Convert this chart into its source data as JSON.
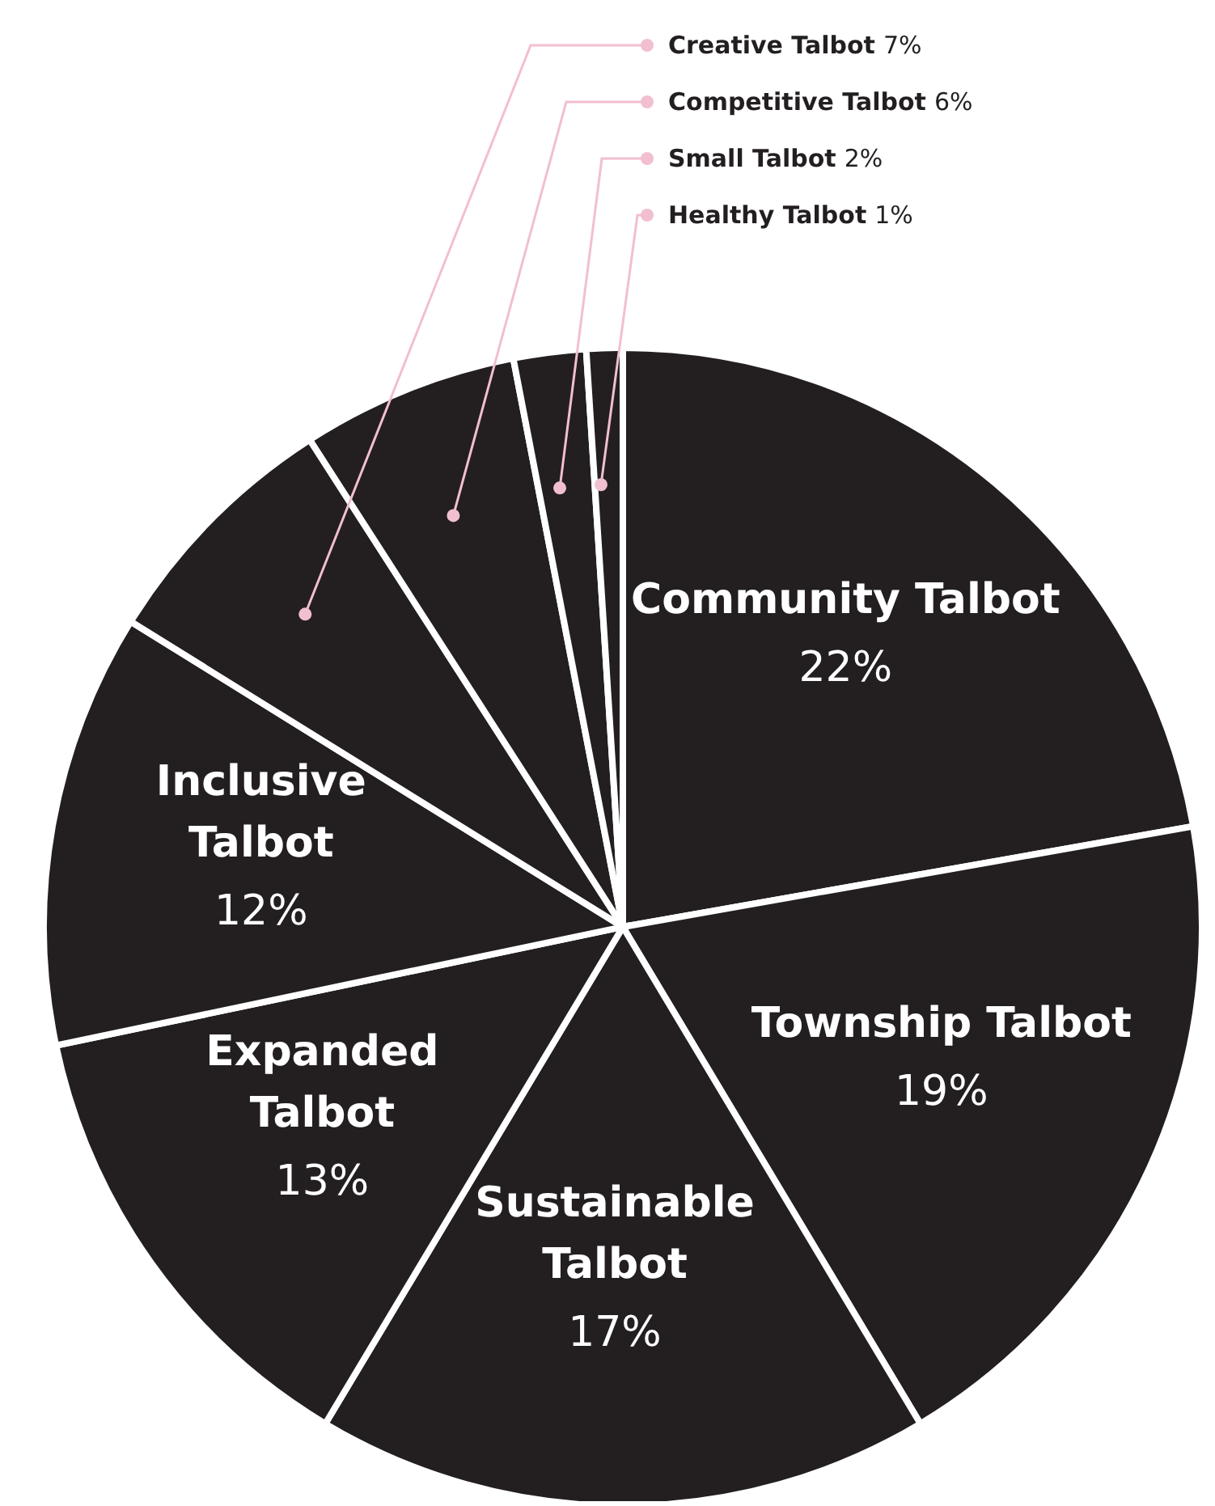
{
  "chart_data": {
    "type": "pie",
    "categories": [
      "Community Talbot",
      "Township Talbot",
      "Sustainable Talbot",
      "Expanded Talbot",
      "Inclusive Talbot",
      "Creative Talbot",
      "Competitive Talbot",
      "Small Talbot",
      "Healthy Talbot"
    ],
    "values": [
      22,
      19,
      17,
      13,
      12,
      7,
      6,
      2,
      1
    ],
    "value_labels": [
      "22%",
      "19%",
      "17%",
      "13%",
      "12%",
      "7%",
      "6%",
      "2%",
      "1%"
    ],
    "colors": [
      "#231f20",
      "#231f20",
      "#231f20",
      "#231f20",
      "#231f20",
      "#231f20",
      "#231f20",
      "#231f20",
      "#231f20"
    ]
  }
}
